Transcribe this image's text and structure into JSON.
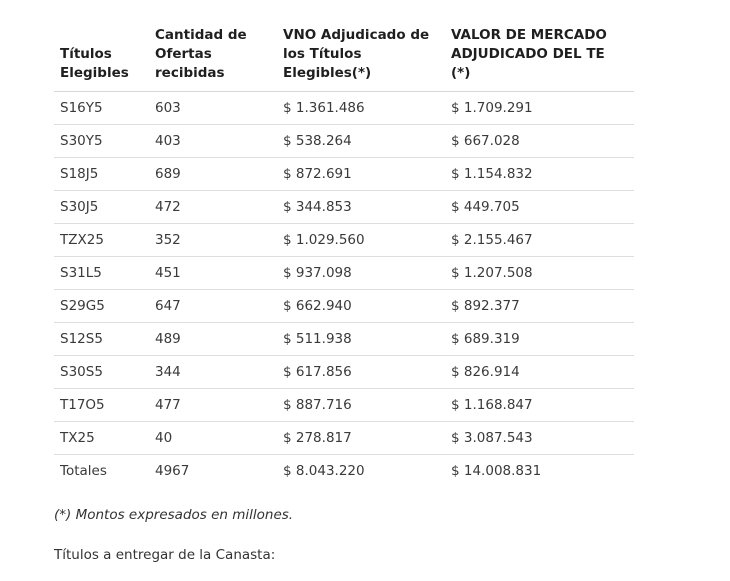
{
  "table": {
    "headers": [
      [
        "Títulos",
        "Elegibles"
      ],
      [
        "Cantidad de",
        "Ofertas",
        "recibidas"
      ],
      [
        "VNO Adjudicado de",
        "los Títulos",
        "Elegibles(*)"
      ],
      [
        "VALOR DE MERCADO",
        "ADJUDICADO DEL TE (*)"
      ]
    ],
    "rows": [
      [
        "S16Y5",
        "603",
        "$ 1.361.486",
        "$ 1.709.291"
      ],
      [
        "S30Y5",
        "403",
        "$ 538.264",
        "$ 667.028"
      ],
      [
        "S18J5",
        "689",
        "$ 872.691",
        "$ 1.154.832"
      ],
      [
        "S30J5",
        "472",
        "$ 344.853",
        "$ 449.705"
      ],
      [
        "TZX25",
        "352",
        "$ 1.029.560",
        "$ 2.155.467"
      ],
      [
        "S31L5",
        "451",
        "$ 937.098",
        "$ 1.207.508"
      ],
      [
        "S29G5",
        "647",
        "$ 662.940",
        "$ 892.377"
      ],
      [
        "S12S5",
        "489",
        "$ 511.938",
        "$ 689.319"
      ],
      [
        "S30S5",
        "344",
        "$ 617.856",
        "$ 826.914"
      ],
      [
        "T17O5",
        "477",
        "$ 887.716",
        "$ 1.168.847"
      ],
      [
        "TX25",
        "40",
        "$ 278.817",
        "$ 3.087.543"
      ],
      [
        "Totales",
        "4967",
        "$ 8.043.220",
        "$ 14.008.831"
      ]
    ]
  },
  "note": "(*) Montos expresados en millones.",
  "subheading": "Títulos a entregar de la Canasta:"
}
